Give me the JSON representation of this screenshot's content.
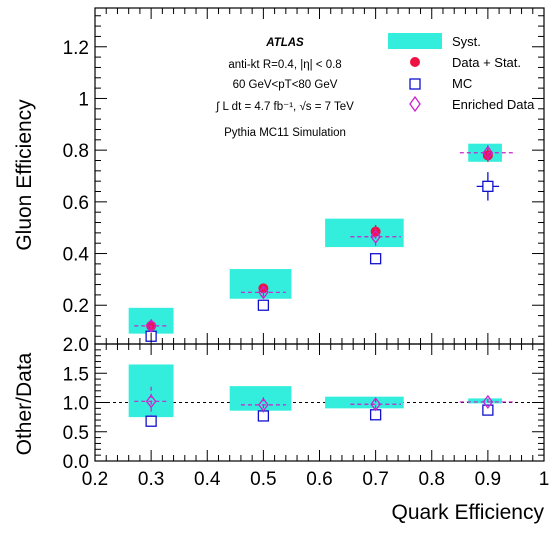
{
  "chart_data": [
    {
      "type": "scatter",
      "panel": "main",
      "xlabel": "",
      "ylabel": "Gluon Efficiency",
      "xlim": [
        0.2,
        1.0
      ],
      "ylim": [
        0.05,
        1.35
      ],
      "xticks": [
        "0.2",
        "0.3",
        "0.4",
        "0.5",
        "0.6",
        "0.7",
        "0.8",
        "0.9",
        "1"
      ],
      "yticks": [
        "0.2",
        "0.4",
        "0.6",
        "0.8",
        "1",
        "1.2"
      ],
      "ytick_values": [
        0.2,
        0.4,
        0.6,
        0.8,
        1.0,
        1.2
      ],
      "annotations": {
        "experiment": "ATLAS",
        "line1": "anti-kt R=0.4, |η| < 0.8",
        "line2": "60 GeV<pT<80 GeV",
        "line3": "∫ L dt = 4.7 fb⁻¹, √s = 7 TeV",
        "line4": "Pythia MC11 Simulation"
      },
      "legend_position": "top-right",
      "series": [
        {
          "name": "Syst.",
          "kind": "box",
          "color": "#33eedd",
          "points": [
            {
              "x0": 0.26,
              "x1": 0.34,
              "y0": 0.09,
              "y1": 0.19
            },
            {
              "x0": 0.44,
              "x1": 0.55,
              "y0": 0.225,
              "y1": 0.34
            },
            {
              "x0": 0.61,
              "x1": 0.75,
              "y0": 0.425,
              "y1": 0.535
            },
            {
              "x0": 0.865,
              "x1": 0.925,
              "y0": 0.755,
              "y1": 0.825
            }
          ]
        },
        {
          "name": "Data + Stat.",
          "kind": "dot",
          "color": "#ee1144",
          "points": [
            {
              "x": 0.3,
              "y": 0.12,
              "err": 0.01
            },
            {
              "x": 0.5,
              "y": 0.265,
              "err": 0.01
            },
            {
              "x": 0.7,
              "y": 0.485,
              "err": 0.025
            },
            {
              "x": 0.9,
              "y": 0.78,
              "err": 0.025
            }
          ]
        },
        {
          "name": "MC",
          "kind": "square",
          "color": "#1111cc",
          "points": [
            {
              "x": 0.3,
              "y": 0.08,
              "xerr": 0.0,
              "yerr": 0.01
            },
            {
              "x": 0.5,
              "y": 0.2,
              "xerr": 0.0,
              "yerr": 0.01
            },
            {
              "x": 0.7,
              "y": 0.38,
              "xerr": 0.0,
              "yerr": 0.02
            },
            {
              "x": 0.9,
              "y": 0.66,
              "xerr": 0.02,
              "yerr": 0.055
            }
          ]
        },
        {
          "name": "Enriched Data",
          "kind": "diamond",
          "color": "#cc22cc",
          "points": [
            {
              "x": 0.3,
              "y": 0.12,
              "xerr": 0.03,
              "yerr": 0.025
            },
            {
              "x": 0.5,
              "y": 0.25,
              "xerr": 0.04,
              "yerr": 0.025
            },
            {
              "x": 0.7,
              "y": 0.465,
              "xerr": 0.045,
              "yerr": 0.035
            },
            {
              "x": 0.9,
              "y": 0.79,
              "xerr": 0.05,
              "yerr": 0.03
            }
          ]
        }
      ]
    },
    {
      "type": "scatter",
      "panel": "ratio",
      "xlabel": "Quark Efficiency",
      "ylabel": "Other/Data",
      "xlim": [
        0.2,
        1.0
      ],
      "ylim": [
        0.0,
        2.0
      ],
      "xticks": [
        "0.2",
        "0.3",
        "0.4",
        "0.5",
        "0.6",
        "0.7",
        "0.8",
        "0.9",
        "1"
      ],
      "xtick_values": [
        0.2,
        0.3,
        0.4,
        0.5,
        0.6,
        0.7,
        0.8,
        0.9,
        1.0
      ],
      "yticks": [
        "0.0",
        "0.5",
        "1.0",
        "1.5",
        "2.0"
      ],
      "ytick_values": [
        0.0,
        0.5,
        1.0,
        1.5,
        2.0
      ],
      "reference_line": 1.0,
      "series": [
        {
          "name": "Syst.",
          "kind": "box",
          "color": "#33eedd",
          "points": [
            {
              "x0": 0.26,
              "x1": 0.34,
              "y0": 0.75,
              "y1": 1.65
            },
            {
              "x0": 0.44,
              "x1": 0.55,
              "y0": 0.86,
              "y1": 1.28
            },
            {
              "x0": 0.61,
              "x1": 0.75,
              "y0": 0.9,
              "y1": 1.1
            },
            {
              "x0": 0.865,
              "x1": 0.925,
              "y0": 0.985,
              "y1": 1.07
            }
          ]
        },
        {
          "name": "MC",
          "kind": "square",
          "color": "#1111cc",
          "points": [
            {
              "x": 0.3,
              "y": 0.68,
              "xerr": 0.0,
              "yerr": 0.0
            },
            {
              "x": 0.5,
              "y": 0.77,
              "xerr": 0.0,
              "yerr": 0.0
            },
            {
              "x": 0.7,
              "y": 0.79,
              "xerr": 0.0,
              "yerr": 0.0
            },
            {
              "x": 0.9,
              "y": 0.87,
              "xerr": 0.0,
              "yerr": 0.0
            }
          ]
        },
        {
          "name": "Enriched Data",
          "kind": "diamond",
          "color": "#cc22cc",
          "points": [
            {
              "x": 0.3,
              "y": 1.02,
              "xerr": 0.03,
              "yerr": 0.25
            },
            {
              "x": 0.5,
              "y": 0.96,
              "xerr": 0.04,
              "yerr": 0.13
            },
            {
              "x": 0.7,
              "y": 0.97,
              "xerr": 0.045,
              "yerr": 0.1
            },
            {
              "x": 0.9,
              "y": 1.01,
              "xerr": 0.05,
              "yerr": 0.06
            }
          ]
        }
      ]
    }
  ]
}
